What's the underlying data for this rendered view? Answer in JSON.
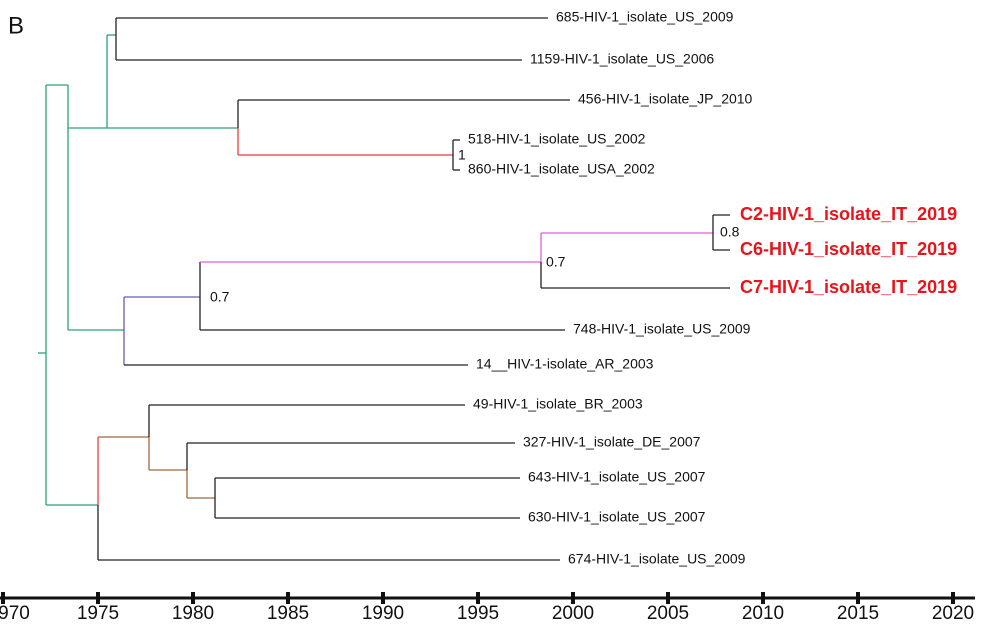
{
  "panel_label": "B",
  "tips": [
    "685-HIV-1_isolate_US_2009",
    "1159-HIV-1_isolate_US_2006",
    "456-HIV-1_isolate_JP_2010",
    "518-HIV-1_isolate_US_2002",
    "860-HIV-1_isolate_USA_2002",
    "C2-HIV-1_isolate_IT_2019",
    "C6-HIV-1_isolate_IT_2019",
    "C7-HIV-1_isolate_IT_2019",
    "748-HIV-1_isolate_US_2009",
    "14__HIV-1-isolate_AR_2003",
    "49-HIV-1_isolate_BR_2003",
    "327-HIV-1_isolate_DE_2007",
    "643-HIV-1_isolate_US_2007",
    "630-HIV-1_isolate_US_2007",
    "674-HIV-1_isolate_US_2009"
  ],
  "support": [
    "1",
    "0.8",
    "0.7",
    "0.7"
  ],
  "axis_ticks": [
    "970",
    "1975",
    "1980",
    "1985",
    "1990",
    "1995",
    "2000",
    "2005",
    "2010",
    "2015",
    "2020"
  ]
}
